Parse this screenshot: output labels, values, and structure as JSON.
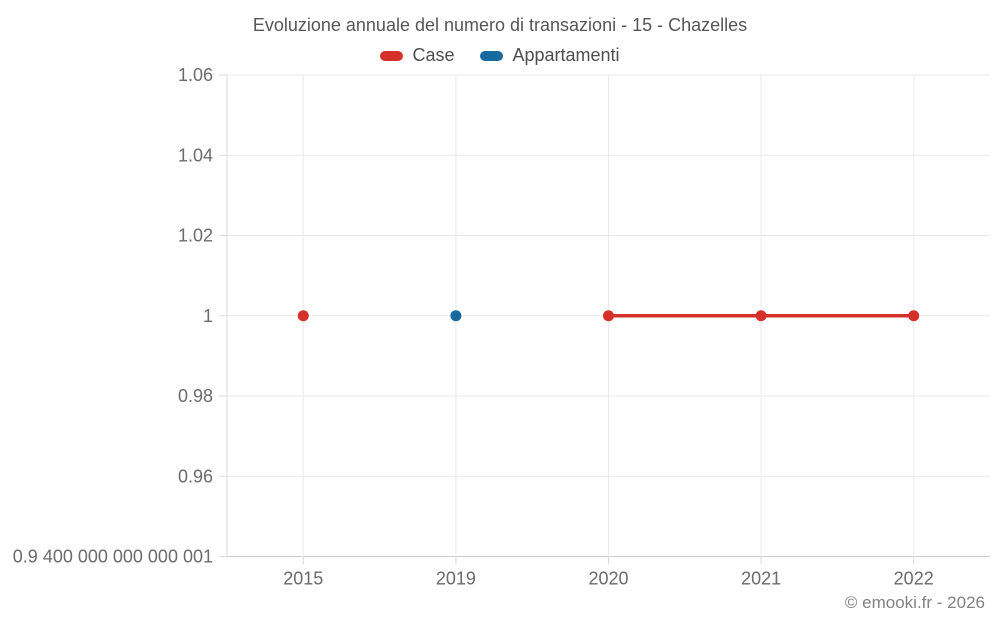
{
  "header": {
    "title": "Evoluzione annuale del numero di transazioni - 15 - Chazelles"
  },
  "legend": {
    "items": [
      {
        "label": "Case",
        "color": "#d6302b"
      },
      {
        "label": "Appartamenti",
        "color": "#17699e"
      }
    ]
  },
  "footer": {
    "credit": "© emooki.fr - 2026"
  },
  "colors": {
    "grid": "#e9e9e9",
    "axis_line": "#cccccc",
    "tick": "#dadada",
    "axis_text": "#6b6b6b"
  },
  "chart_data": {
    "type": "line",
    "title": "Evoluzione annuale del numero di transazioni - 15 - Chazelles",
    "xlabel": "",
    "ylabel": "",
    "categories": [
      "2015",
      "2019",
      "2020",
      "2021",
      "2022"
    ],
    "series": [
      {
        "name": "Case",
        "color": "#d6302b",
        "values": [
          1,
          null,
          1,
          1,
          1
        ]
      },
      {
        "name": "Appartamenti",
        "color": "#17699e",
        "values": [
          null,
          1,
          null,
          null,
          null
        ]
      }
    ],
    "ylim": [
      0.94,
      1.06
    ],
    "yticks": [
      {
        "value": 1.06,
        "label": "1.06"
      },
      {
        "value": 1.04,
        "label": "1.04"
      },
      {
        "value": 1.02,
        "label": "1.02"
      },
      {
        "value": 1.0,
        "label": "1"
      },
      {
        "value": 0.98,
        "label": "0.98"
      },
      {
        "value": 0.96,
        "label": "0.96"
      },
      {
        "value": 0.94,
        "label": "0.9 400 000 000 000 001"
      }
    ],
    "grid": true,
    "legend_position": "top",
    "marker": "circle",
    "note": "line drawn only between consecutive non-null points (gap at missing years)"
  }
}
